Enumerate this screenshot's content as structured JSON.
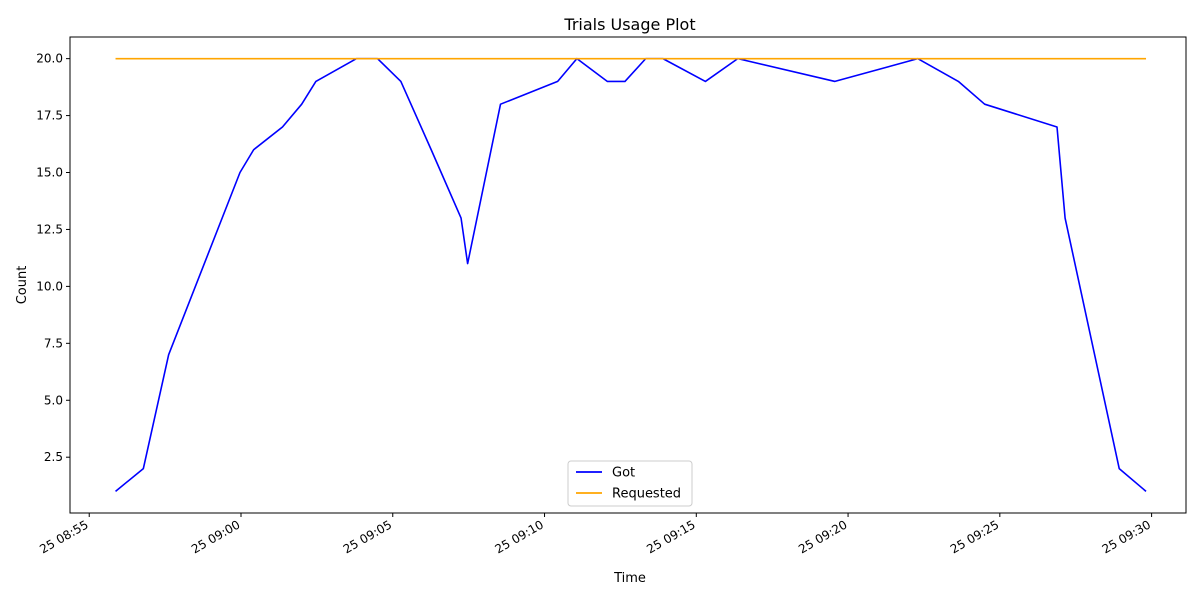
{
  "chart_data": {
    "type": "line",
    "title": "Trials Usage Plot",
    "xlabel": "Time",
    "ylabel": "Count",
    "ylim": [
      0.05,
      20.95
    ],
    "xlim": [
      "08:54:22",
      "09:31:08"
    ],
    "y_ticks": [
      2.5,
      5.0,
      7.5,
      10.0,
      12.5,
      15.0,
      17.5,
      20.0
    ],
    "y_tick_labels": [
      "2.5",
      "5.0",
      "7.5",
      "10.0",
      "12.5",
      "15.0",
      "17.5",
      "20.0"
    ],
    "x_ticks": [
      "08:55",
      "09:00",
      "09:05",
      "09:10",
      "09:15",
      "09:20",
      "09:25",
      "09:30"
    ],
    "x_tick_labels": [
      "25 08:55",
      "25 09:00",
      "25 09:05",
      "25 09:10",
      "25 09:15",
      "25 09:20",
      "25 09:25",
      "25 09:30"
    ],
    "grid": false,
    "legend_position": "bottom-center",
    "series": [
      {
        "name": "Got",
        "color": "#0000ff",
        "points": [
          [
            "08:55:52",
            1
          ],
          [
            "08:56:47",
            2
          ],
          [
            "08:57:37",
            7
          ],
          [
            "08:59:58",
            15
          ],
          [
            "09:00:25",
            16
          ],
          [
            "09:01:22",
            17
          ],
          [
            "09:02:00",
            18
          ],
          [
            "09:02:28",
            19
          ],
          [
            "09:03:48",
            20
          ],
          [
            "09:04:30",
            20
          ],
          [
            "09:05:16",
            19
          ],
          [
            "09:06:16",
            16
          ],
          [
            "09:07:15",
            13
          ],
          [
            "09:07:28",
            11
          ],
          [
            "09:08:33",
            18
          ],
          [
            "09:10:26",
            19
          ],
          [
            "09:11:04",
            20
          ],
          [
            "09:12:04",
            19
          ],
          [
            "09:12:39",
            19
          ],
          [
            "09:13:20",
            20
          ],
          [
            "09:13:54",
            20
          ],
          [
            "09:15:18",
            19
          ],
          [
            "09:16:22",
            20
          ],
          [
            "09:19:34",
            19
          ],
          [
            "09:22:18",
            20
          ],
          [
            "09:23:38",
            19
          ],
          [
            "09:24:30",
            18
          ],
          [
            "09:26:53",
            17
          ],
          [
            "09:27:09",
            13
          ],
          [
            "09:28:56",
            2
          ],
          [
            "09:29:49",
            1
          ]
        ]
      },
      {
        "name": "Requested",
        "color": "#ffa500",
        "points": [
          [
            "08:55:52",
            20
          ],
          [
            "09:29:49",
            20
          ]
        ]
      }
    ]
  }
}
